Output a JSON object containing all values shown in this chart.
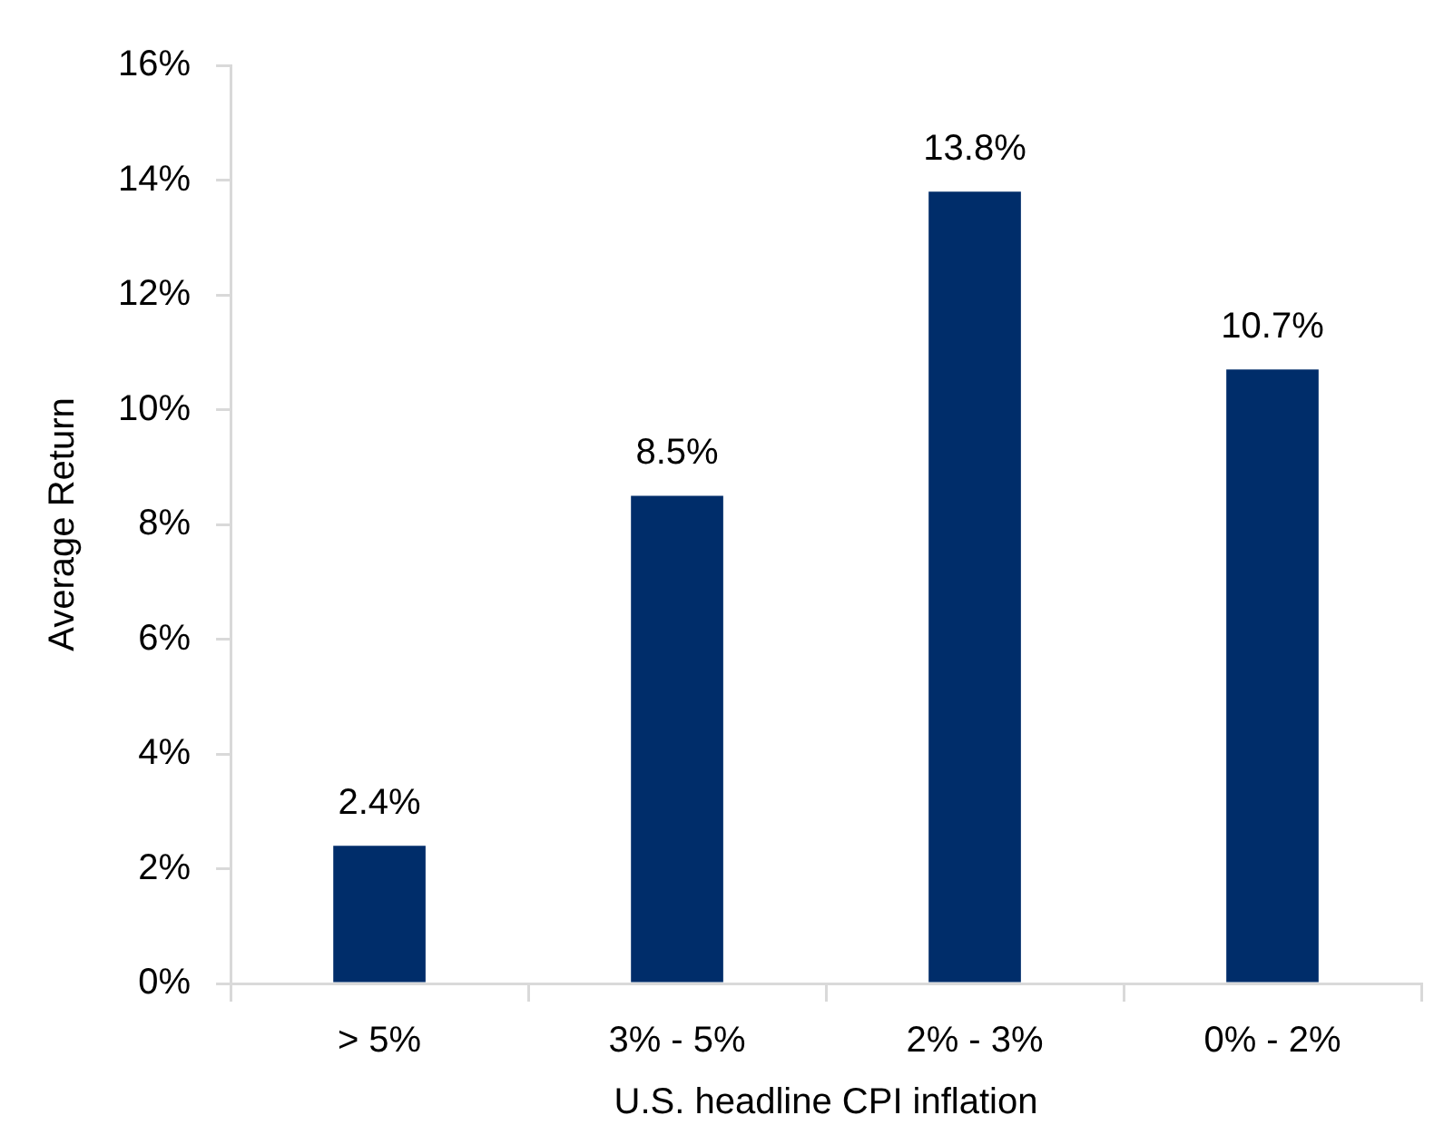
{
  "chart_data": {
    "type": "bar",
    "xlabel": "U.S. headline CPI inflation",
    "ylabel": "Average Return",
    "categories": [
      "> 5%",
      "3% - 5%",
      "2% - 3%",
      "0% - 2%"
    ],
    "values": [
      2.4,
      8.5,
      13.8,
      10.7
    ],
    "value_labels": [
      "2.4%",
      "8.5%",
      "13.8%",
      "10.7%"
    ],
    "color": "#002d6a",
    "ylim": [
      0,
      16
    ],
    "yticks": [
      {
        "value": 0,
        "label": "0%"
      },
      {
        "value": 2,
        "label": "2%"
      },
      {
        "value": 4,
        "label": "4%"
      },
      {
        "value": 6,
        "label": "6%"
      },
      {
        "value": 8,
        "label": "8%"
      },
      {
        "value": 10,
        "label": "10%"
      },
      {
        "value": 12,
        "label": "12%"
      },
      {
        "value": 14,
        "label": "14%"
      },
      {
        "value": 16,
        "label": "16%"
      }
    ]
  }
}
